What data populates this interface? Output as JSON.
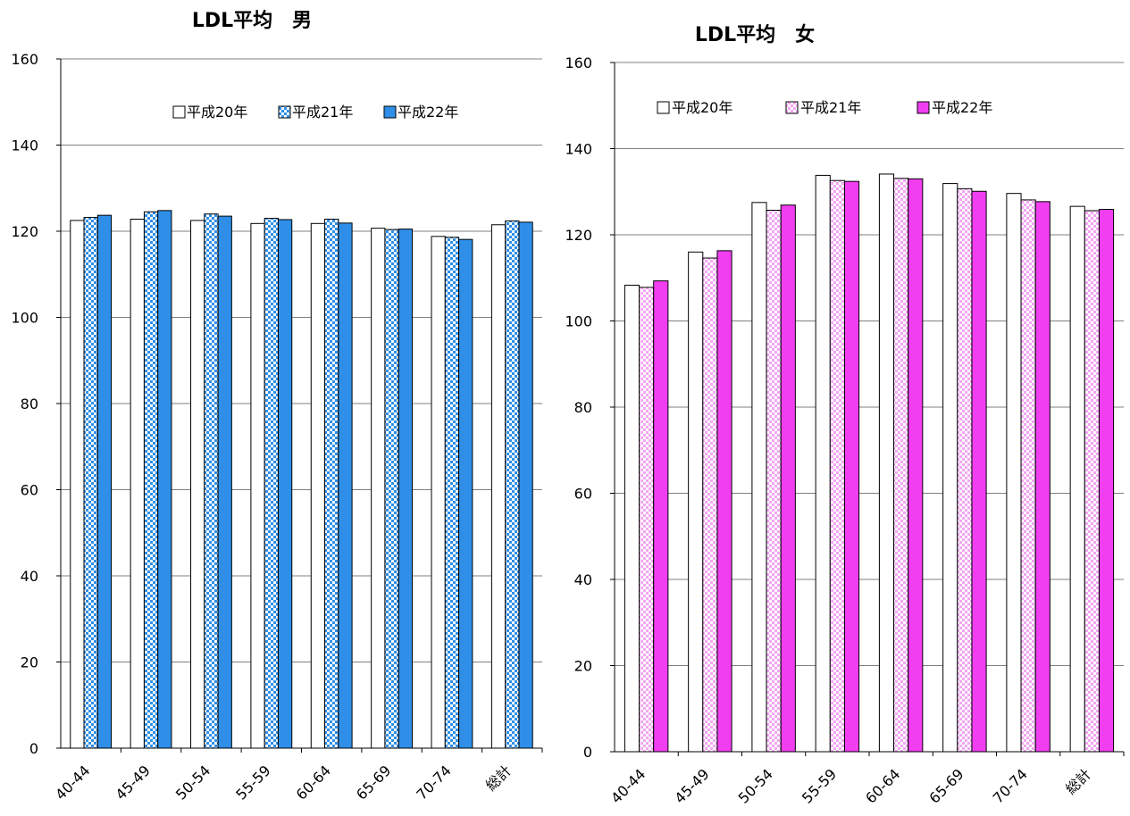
{
  "chart_data": [
    {
      "type": "bar",
      "title": "LDL平均　男",
      "categories": [
        "40-44",
        "45-49",
        "50-54",
        "55-59",
        "60-64",
        "65-69",
        "70-74",
        "総計"
      ],
      "series": [
        {
          "name": "平成20年",
          "values": [
            122.5,
            122.8,
            122.5,
            121.8,
            121.8,
            120.7,
            118.8,
            121.5
          ]
        },
        {
          "name": "平成21年",
          "values": [
            123.2,
            124.5,
            124.0,
            123.0,
            122.8,
            120.4,
            118.6,
            122.4
          ]
        },
        {
          "name": "平成22年",
          "values": [
            123.7,
            124.8,
            123.5,
            122.7,
            121.9,
            120.5,
            118.1,
            122.1
          ]
        }
      ],
      "ylim": [
        0,
        160
      ],
      "yticks": [
        0,
        20,
        40,
        60,
        80,
        100,
        120,
        140,
        160
      ],
      "grid": true,
      "legend_position": "top",
      "colors": {
        "s1": "#ffffff",
        "s2": "#a8d4f5",
        "s3": "#2f8fe8"
      }
    },
    {
      "type": "bar",
      "title": "LDL平均　女",
      "categories": [
        "40-44",
        "45-49",
        "50-54",
        "55-59",
        "60-64",
        "65-69",
        "70-74",
        "総計"
      ],
      "series": [
        {
          "name": "平成20年",
          "values": [
            108.3,
            116.0,
            127.5,
            133.8,
            134.1,
            131.9,
            129.6,
            126.6
          ]
        },
        {
          "name": "平成21年",
          "values": [
            107.8,
            114.6,
            125.7,
            132.6,
            133.1,
            130.7,
            128.1,
            125.6
          ]
        },
        {
          "name": "平成22年",
          "values": [
            109.3,
            116.3,
            126.9,
            132.4,
            133.0,
            130.1,
            127.7,
            125.9
          ]
        }
      ],
      "ylim": [
        0,
        160
      ],
      "yticks": [
        0,
        20,
        40,
        60,
        80,
        100,
        120,
        140,
        160
      ],
      "grid": true,
      "legend_position": "top",
      "colors": {
        "s1": "#ffffff",
        "s2": "#f3bff3",
        "s3": "#f03ef0"
      }
    }
  ]
}
